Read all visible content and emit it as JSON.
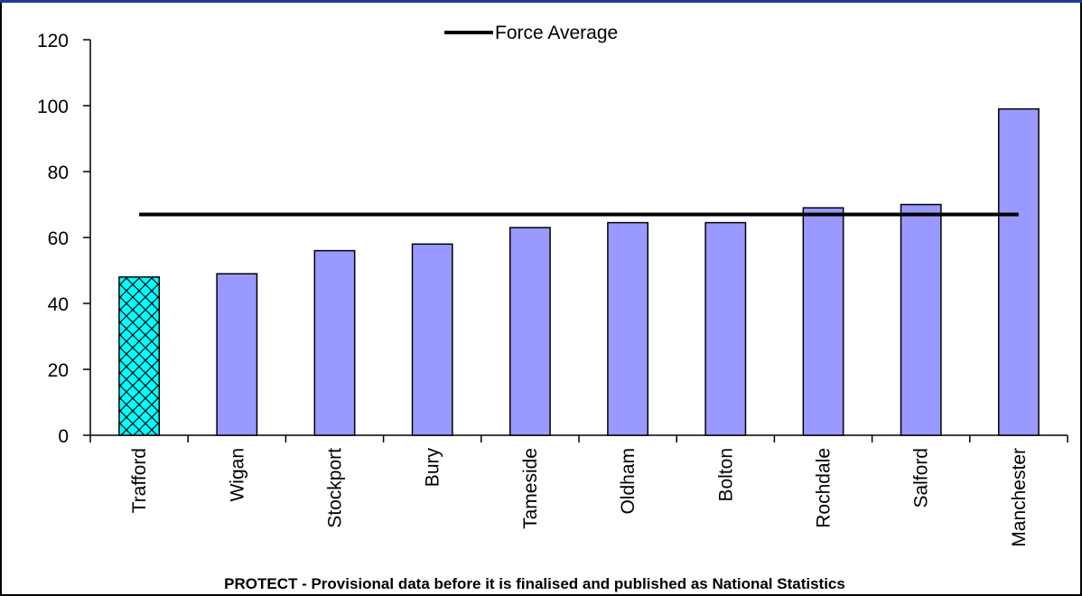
{
  "chart_data": {
    "type": "bar",
    "categories": [
      "Trafford",
      "Wigan",
      "Stockport",
      "Bury",
      "Tameside",
      "Oldham",
      "Bolton",
      "Rochdale",
      "Salford",
      "Manchester"
    ],
    "series": [
      {
        "values": [
          48,
          49,
          56,
          58,
          63,
          64.5,
          64.5,
          69,
          70,
          99
        ],
        "color": "#9999ff",
        "highlight": {
          "category": "Trafford",
          "color": "#00ffff",
          "pattern": "crosshatch"
        }
      }
    ],
    "reference_line": {
      "name": "Force Average",
      "value": 67,
      "color": "#000000"
    },
    "legend": {
      "entries": [
        "Force Average"
      ],
      "placement": "top-center"
    },
    "yticks": [
      "0",
      "20",
      "40",
      "60",
      "80",
      "100",
      "120"
    ],
    "ylim": [
      0,
      120
    ],
    "grid": false,
    "footnote": "PROTECT - Provisional data before it is finalised and published as National Statistics"
  }
}
